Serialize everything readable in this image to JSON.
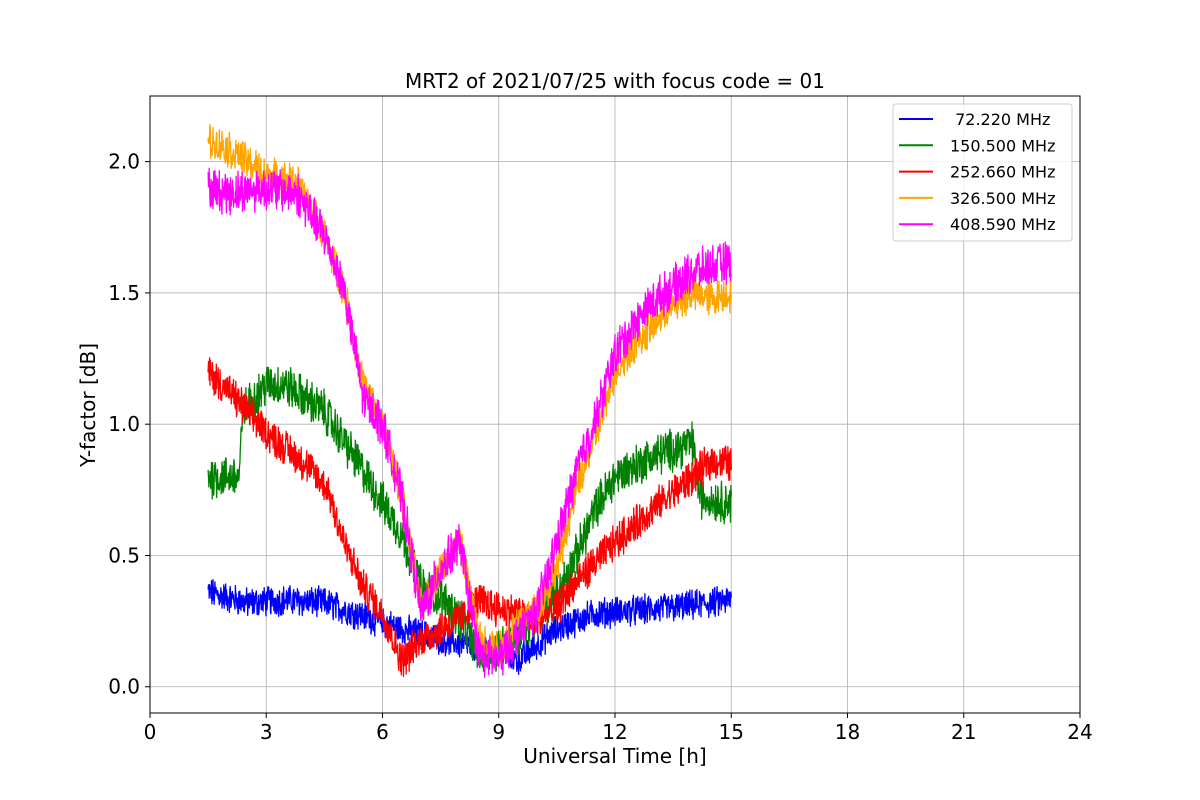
{
  "chart_data": {
    "type": "line",
    "title": "MRT2 of 2021/07/25 with focus code = 01",
    "xlabel": "Universal Time [h]",
    "ylabel": "Y-factor [dB]",
    "xlim": [
      0,
      24
    ],
    "ylim": [
      -0.1,
      2.25
    ],
    "xticks": [
      0,
      3,
      6,
      9,
      12,
      15,
      18,
      21,
      24
    ],
    "xtick_labels": [
      "0",
      "3",
      "6",
      "9",
      "12",
      "15",
      "18",
      "21",
      "24"
    ],
    "yticks": [
      0.0,
      0.5,
      1.0,
      1.5,
      2.0
    ],
    "ytick_labels": [
      "0.0",
      "0.5",
      "1.0",
      "1.5",
      "2.0"
    ],
    "grid": true,
    "legend_position": "top-right",
    "series": [
      {
        "name": " 72.220 MHz",
        "color": "#0000ff",
        "x": [
          1.5,
          2.5,
          3.5,
          4.5,
          5.5,
          6.5,
          7.5,
          8.5,
          9.5,
          10.5,
          11.5,
          12.5,
          13.5,
          14.5,
          15.0
        ],
        "y": [
          0.36,
          0.32,
          0.33,
          0.32,
          0.27,
          0.22,
          0.18,
          0.15,
          0.1,
          0.22,
          0.28,
          0.29,
          0.3,
          0.32,
          0.33
        ],
        "noise": 0.05
      },
      {
        "name": "150.500 MHz",
        "color": "#008000",
        "x": [
          1.5,
          2.3,
          2.4,
          3.0,
          3.5,
          4.5,
          5.5,
          6.0,
          6.5,
          7.0,
          7.5,
          8.0,
          8.5,
          9.0,
          9.5,
          10.0,
          10.5,
          11.0,
          11.5,
          12.0,
          13.0,
          14.0,
          14.2,
          15.0
        ],
        "y": [
          0.8,
          0.8,
          1.05,
          1.15,
          1.15,
          1.05,
          0.82,
          0.7,
          0.58,
          0.38,
          0.34,
          0.26,
          0.12,
          0.15,
          0.2,
          0.28,
          0.35,
          0.5,
          0.68,
          0.8,
          0.88,
          0.93,
          0.72,
          0.7
        ],
        "noise": 0.07
      },
      {
        "name": "252.660 MHz",
        "color": "#ff0000",
        "x": [
          1.5,
          2.0,
          3.0,
          4.0,
          4.6,
          5.0,
          5.5,
          6.0,
          6.5,
          7.0,
          7.5,
          8.0,
          8.5,
          9.0,
          9.5,
          10.0,
          10.5,
          11.0,
          12.0,
          13.0,
          14.0,
          14.5,
          15.0
        ],
        "y": [
          1.2,
          1.13,
          0.97,
          0.85,
          0.75,
          0.55,
          0.38,
          0.28,
          0.1,
          0.18,
          0.22,
          0.26,
          0.33,
          0.3,
          0.28,
          0.25,
          0.3,
          0.4,
          0.55,
          0.68,
          0.8,
          0.86,
          0.85
        ],
        "noise": 0.06
      },
      {
        "name": "326.500 MHz",
        "color": "#ffa500",
        "x": [
          1.5,
          2.0,
          3.0,
          3.8,
          4.5,
          5.0,
          5.5,
          6.0,
          6.5,
          7.0,
          7.5,
          8.0,
          8.5,
          9.0,
          9.5,
          10.0,
          10.5,
          11.0,
          11.5,
          12.0,
          12.5,
          13.0,
          13.5,
          14.0,
          14.5,
          15.0
        ],
        "y": [
          2.08,
          2.05,
          1.95,
          1.92,
          1.72,
          1.52,
          1.15,
          1.0,
          0.72,
          0.3,
          0.45,
          0.55,
          0.18,
          0.15,
          0.25,
          0.3,
          0.45,
          0.75,
          0.95,
          1.2,
          1.3,
          1.38,
          1.45,
          1.5,
          1.48,
          1.5
        ],
        "noise": 0.06
      },
      {
        "name": "408.590 MHz",
        "color": "#ff00ff",
        "x": [
          1.5,
          2.0,
          3.0,
          3.8,
          4.5,
          5.0,
          5.5,
          6.0,
          6.5,
          7.0,
          7.5,
          8.0,
          8.5,
          9.0,
          9.5,
          10.0,
          10.5,
          11.0,
          11.5,
          12.0,
          12.5,
          13.0,
          13.5,
          14.0,
          14.5,
          15.0
        ],
        "y": [
          1.9,
          1.88,
          1.9,
          1.88,
          1.72,
          1.52,
          1.1,
          1.0,
          0.72,
          0.28,
          0.45,
          0.55,
          0.12,
          0.1,
          0.2,
          0.3,
          0.55,
          0.82,
          1.02,
          1.27,
          1.38,
          1.47,
          1.52,
          1.58,
          1.6,
          1.62
        ],
        "noise": 0.07
      }
    ]
  }
}
